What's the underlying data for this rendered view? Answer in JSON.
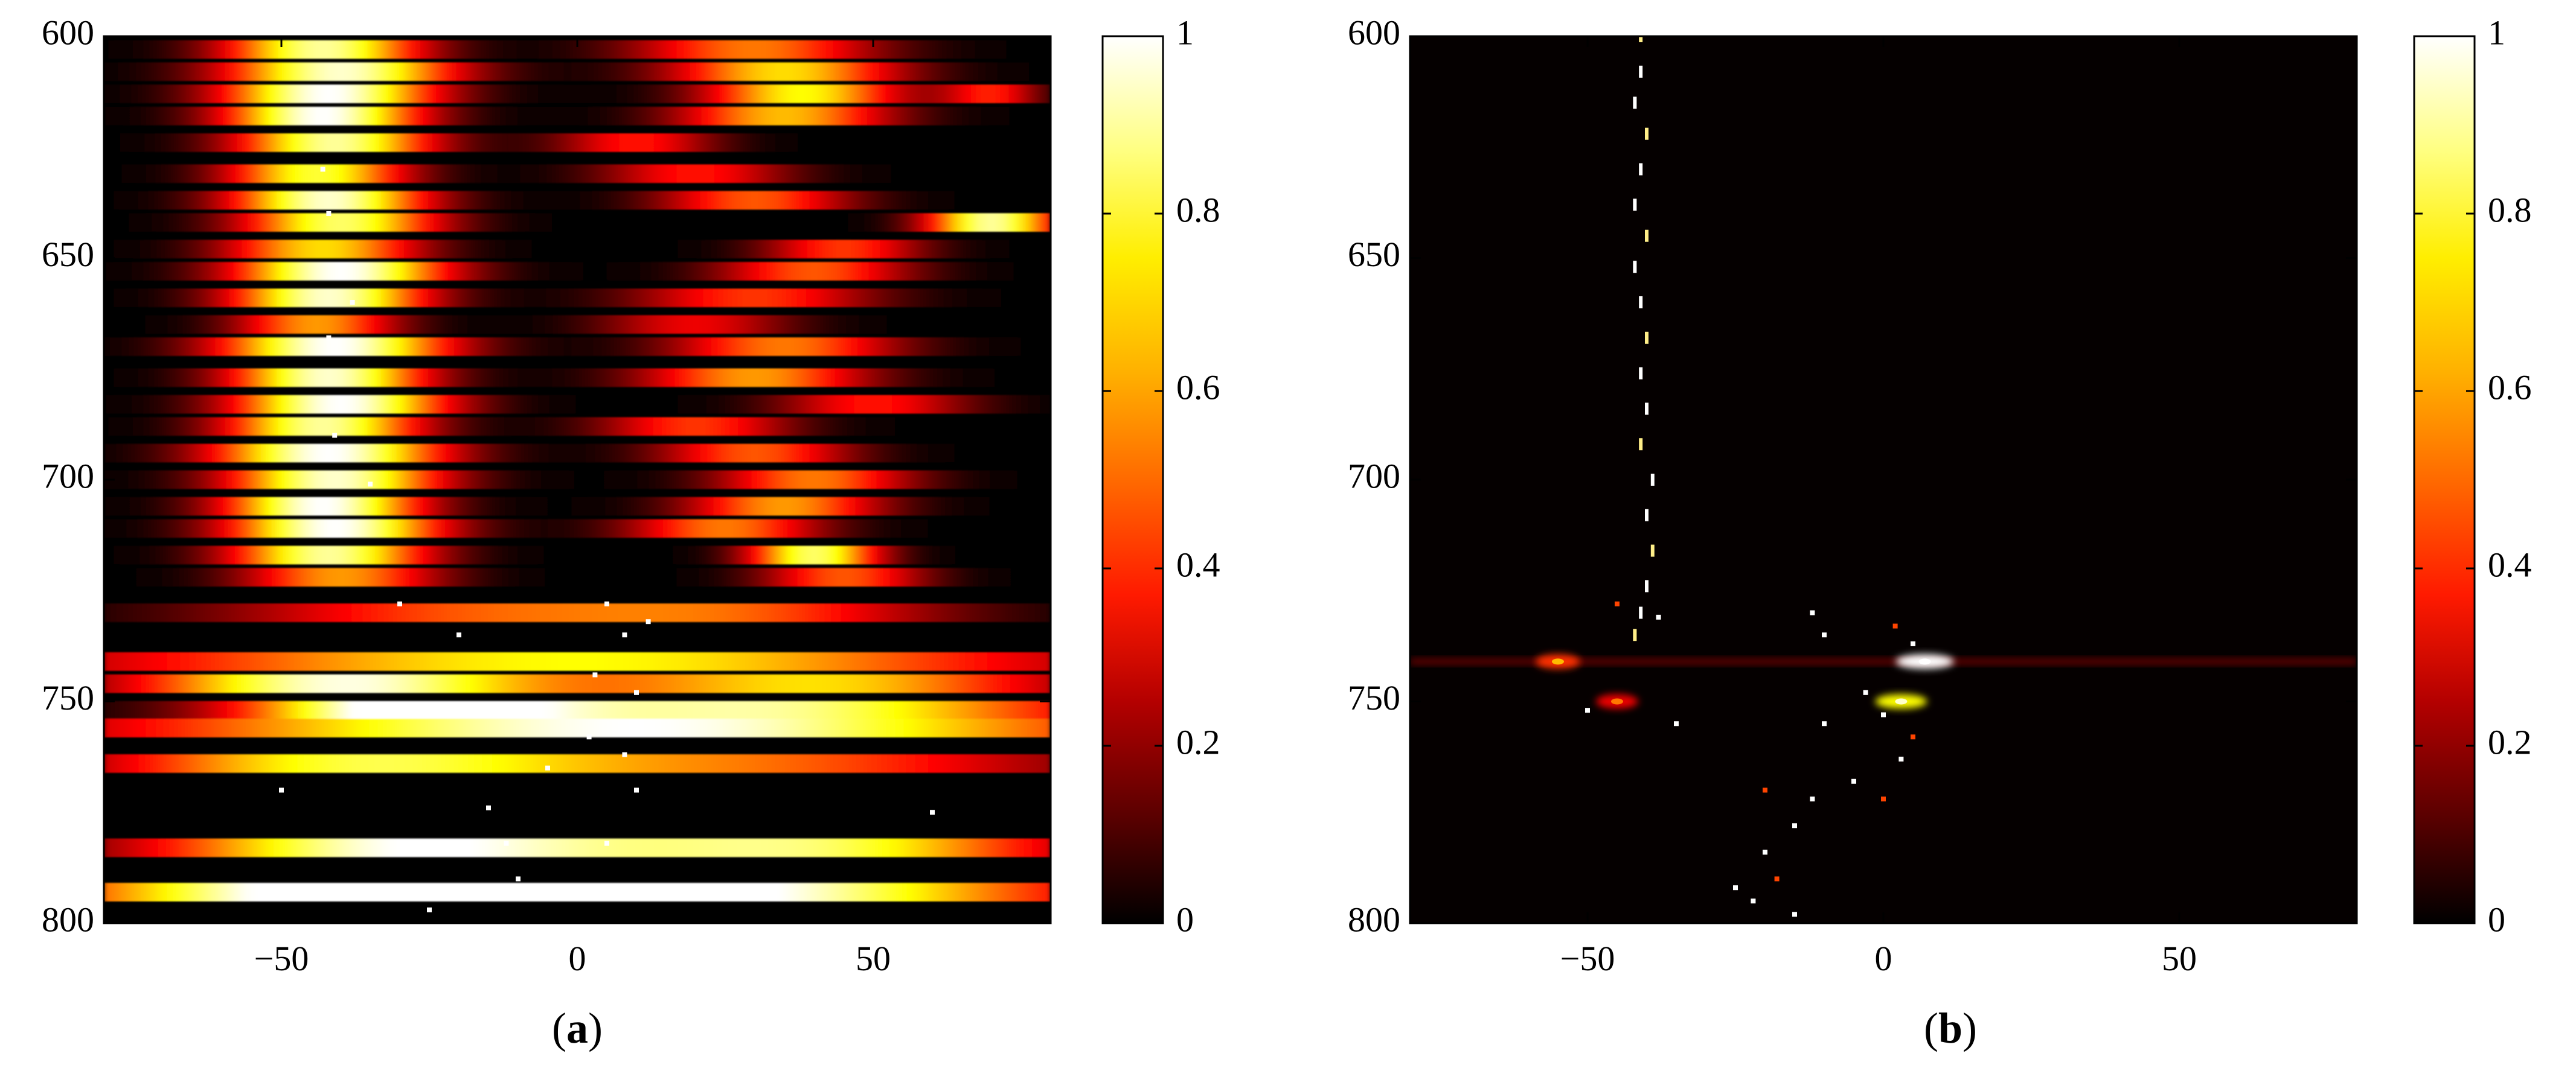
{
  "colors": {
    "colormap_hot": [
      "#000000",
      "#5a0000",
      "#b40000",
      "#ff1a00",
      "#ff6a00",
      "#ffb000",
      "#ffee00",
      "#ffff80",
      "#ffffff"
    ],
    "axis": "#000000",
    "background": "#ffffff"
  },
  "chart_data": [
    {
      "type": "heatmap",
      "panel_label": "a",
      "xlim": [
        -80,
        80
      ],
      "ylim": [
        600,
        800
      ],
      "y_reversed": true,
      "x_ticks": [
        -50,
        0,
        50
      ],
      "y_ticks": [
        600,
        650,
        700,
        750,
        800
      ],
      "x_tick_labels": [
        "−50",
        "0",
        "50"
      ],
      "y_tick_labels": [
        "600",
        "650",
        "700",
        "750",
        "800"
      ],
      "colorbar": {
        "range": [
          0,
          1
        ],
        "ticks": [
          0,
          0.2,
          0.4,
          0.6,
          0.8,
          1
        ],
        "tick_labels": [
          "0",
          "0.2",
          "0.4",
          "0.6",
          "0.8",
          "1"
        ]
      },
      "pattern": "dense horizontal bands; strongest response near x = -45 between y = 600 and 725, secondary blob near x = 35 between y = 605 and 650, thin bright lines below y = 740",
      "rows": [
        {
          "y": 603,
          "peaks": [
            [
              -43,
              0.9,
              12
            ],
            [
              30,
              0.55,
              15
            ]
          ]
        },
        {
          "y": 608,
          "peaks": [
            [
              -40,
              0.95,
              14
            ],
            [
              35,
              0.7,
              14
            ]
          ]
        },
        {
          "y": 613,
          "peaks": [
            [
              -42,
              1.0,
              13
            ],
            [
              38,
              0.75,
              12
            ],
            [
              70,
              0.4,
              6
            ]
          ]
        },
        {
          "y": 618,
          "peaks": [
            [
              -43,
              1.0,
              12
            ],
            [
              35,
              0.65,
              13
            ]
          ]
        },
        {
          "y": 624,
          "peaks": [
            [
              -41,
              0.9,
              12
            ],
            [
              10,
              0.4,
              10
            ]
          ]
        },
        {
          "y": 631,
          "peaks": [
            [
              -44,
              0.8,
              11
            ],
            [
              20,
              0.4,
              12
            ]
          ]
        },
        {
          "y": 637,
          "peaks": [
            [
              -42,
              0.95,
              12
            ],
            [
              30,
              0.5,
              12
            ]
          ]
        },
        {
          "y": 642,
          "peaks": [
            [
              -40,
              0.85,
              12
            ],
            [
              70,
              0.9,
              8
            ]
          ]
        },
        {
          "y": 648,
          "peaks": [
            [
              -43,
              0.7,
              12
            ],
            [
              45,
              0.45,
              10
            ]
          ]
        },
        {
          "y": 653,
          "peaks": [
            [
              -40,
              1.0,
              13
            ],
            [
              40,
              0.5,
              12
            ]
          ]
        },
        {
          "y": 659,
          "peaks": [
            [
              -42,
              0.95,
              12
            ],
            [
              30,
              0.45,
              15
            ]
          ]
        },
        {
          "y": 665,
          "peaks": [
            [
              -44,
              0.6,
              10
            ],
            [
              20,
              0.35,
              12
            ]
          ]
        },
        {
          "y": 670,
          "peaks": [
            [
              -41,
              1.0,
              14
            ],
            [
              35,
              0.55,
              14
            ]
          ]
        },
        {
          "y": 677,
          "peaks": [
            [
              -42,
              0.95,
              12
            ],
            [
              30,
              0.6,
              14
            ]
          ]
        },
        {
          "y": 683,
          "peaks": [
            [
              -40,
              1.0,
              13
            ],
            [
              50,
              0.4,
              12
            ]
          ]
        },
        {
          "y": 688,
          "peaks": [
            [
              -43,
              0.9,
              12
            ],
            [
              20,
              0.45,
              12
            ]
          ]
        },
        {
          "y": 694,
          "peaks": [
            [
              -42,
              1.0,
              14
            ],
            [
              30,
              0.5,
              12
            ]
          ]
        },
        {
          "y": 700,
          "peaks": [
            [
              -41,
              0.95,
              13
            ],
            [
              40,
              0.55,
              12
            ]
          ]
        },
        {
          "y": 706,
          "peaks": [
            [
              -43,
              1.0,
              12
            ],
            [
              35,
              0.6,
              12
            ]
          ]
        },
        {
          "y": 711,
          "peaks": [
            [
              -41,
              1.0,
              13
            ],
            [
              25,
              0.55,
              12
            ]
          ]
        },
        {
          "y": 717,
          "peaks": [
            [
              -42,
              0.9,
              12
            ],
            [
              40,
              0.85,
              8
            ]
          ]
        },
        {
          "y": 722,
          "peaks": [
            [
              -40,
              0.6,
              12
            ],
            [
              45,
              0.5,
              10
            ]
          ]
        },
        {
          "y": 730,
          "peaks": [
            [
              -20,
              0.45,
              30
            ],
            [
              30,
              0.4,
              25
            ]
          ]
        },
        {
          "y": 741,
          "peaks": [
            [
              0,
              0.75,
              60
            ]
          ]
        },
        {
          "y": 746,
          "peaks": [
            [
              -40,
              0.95,
              25
            ],
            [
              40,
              0.7,
              30
            ]
          ]
        },
        {
          "y": 752,
          "peaks": [
            [
              -30,
              0.85,
              20
            ],
            [
              30,
              0.9,
              40
            ]
          ]
        },
        {
          "y": 756,
          "peaks": [
            [
              10,
              1.0,
              60
            ]
          ]
        },
        {
          "y": 764,
          "peaks": [
            [
              -40,
              0.7,
              30
            ],
            [
              30,
              0.5,
              40
            ]
          ]
        },
        {
          "y": 783,
          "peaks": [
            [
              -30,
              0.95,
              30
            ],
            [
              40,
              0.8,
              30
            ]
          ]
        },
        {
          "y": 793,
          "peaks": [
            [
              -40,
              1.0,
              35
            ],
            [
              30,
              0.9,
              40
            ]
          ]
        }
      ],
      "points": [
        [
          -43,
          630
        ],
        [
          -42,
          640
        ],
        [
          -38,
          660
        ],
        [
          -42,
          668
        ],
        [
          -41,
          690
        ],
        [
          -35,
          701
        ],
        [
          -30,
          728
        ],
        [
          -20,
          735
        ],
        [
          5,
          728
        ],
        [
          8,
          735
        ],
        [
          12,
          732
        ],
        [
          3,
          744
        ],
        [
          10,
          748
        ],
        [
          -8,
          752
        ],
        [
          2,
          758
        ],
        [
          8,
          762
        ],
        [
          -5,
          765
        ],
        [
          10,
          770
        ],
        [
          -15,
          774
        ],
        [
          -12,
          782
        ],
        [
          -10,
          790
        ],
        [
          -20,
          793
        ],
        [
          5,
          782
        ],
        [
          -25,
          797
        ],
        [
          60,
          775
        ],
        [
          -50,
          770
        ]
      ]
    },
    {
      "type": "heatmap",
      "panel_label": "b",
      "xlim": [
        -80,
        80
      ],
      "ylim": [
        600,
        800
      ],
      "y_reversed": true,
      "x_ticks": [
        -50,
        0,
        50
      ],
      "y_ticks": [
        600,
        650,
        700,
        750,
        800
      ],
      "x_tick_labels": [
        "−50",
        "0",
        "50"
      ],
      "y_tick_labels": [
        "600",
        "650",
        "700",
        "750",
        "800"
      ],
      "colorbar": {
        "range": [
          0,
          1
        ],
        "ticks": [
          0,
          0.2,
          0.4,
          0.6,
          0.8,
          1
        ],
        "tick_labels": [
          "0",
          "0.2",
          "0.4",
          "0.6",
          "0.8",
          "1"
        ]
      },
      "pattern": "mostly dark; a sparse vertical trace of points near x = -42 from y = 600 to 735, a bright spot near (7, 741), a faint horizontal streak at y = 741, and a scatter of points between x = -30 and 5 below y = 750",
      "hotspots": [
        [
          7,
          741,
          1.0
        ],
        [
          -55,
          741,
          0.45
        ],
        [
          3,
          750,
          0.75
        ],
        [
          -45,
          750,
          0.35
        ]
      ],
      "horizontal_streak": {
        "y": 741,
        "x_range": [
          -80,
          80
        ],
        "value": 0.25
      },
      "trace": [
        [
          -41,
          600
        ],
        [
          -41,
          608
        ],
        [
          -42,
          615
        ],
        [
          -40,
          622
        ],
        [
          -41,
          630
        ],
        [
          -42,
          638
        ],
        [
          -40,
          645
        ],
        [
          -42,
          652
        ],
        [
          -41,
          660
        ],
        [
          -40,
          668
        ],
        [
          -41,
          676
        ],
        [
          -40,
          684
        ],
        [
          -41,
          692
        ],
        [
          -39,
          700
        ],
        [
          -40,
          708
        ],
        [
          -39,
          716
        ],
        [
          -40,
          724
        ],
        [
          -41,
          730
        ],
        [
          -42,
          735
        ]
      ],
      "points": [
        [
          -45,
          728
        ],
        [
          -38,
          731
        ],
        [
          -12,
          730
        ],
        [
          -10,
          735
        ],
        [
          2,
          733
        ],
        [
          5,
          737
        ],
        [
          -3,
          748
        ],
        [
          0,
          753
        ],
        [
          5,
          758
        ],
        [
          -10,
          755
        ],
        [
          3,
          763
        ],
        [
          -5,
          768
        ],
        [
          0,
          772
        ],
        [
          -12,
          772
        ],
        [
          -15,
          778
        ],
        [
          -20,
          784
        ],
        [
          -18,
          790
        ],
        [
          -22,
          795
        ],
        [
          -25,
          792
        ],
        [
          -15,
          798
        ],
        [
          -20,
          770
        ],
        [
          -35,
          755
        ],
        [
          -50,
          752
        ]
      ]
    }
  ]
}
